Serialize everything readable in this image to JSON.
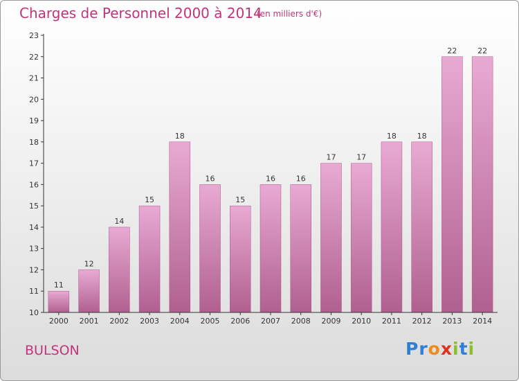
{
  "header": {
    "title": "Charges de Personnel 2000 à 2014",
    "subtitle": "(en milliers d'€)"
  },
  "footer": {
    "town": "BULSON",
    "logo": "Proxiti"
  },
  "colors": {
    "title": "#c0347a",
    "bar_top": "#e8aad3",
    "bar_bottom": "#b0608f"
  },
  "chart_data": {
    "type": "bar",
    "title": "Charges de Personnel 2000 à 2014",
    "subtitle": "(en milliers d'€)",
    "categories": [
      "2000",
      "2001",
      "2002",
      "2003",
      "2004",
      "2005",
      "2006",
      "2007",
      "2008",
      "2009",
      "2010",
      "2011",
      "2012",
      "2013",
      "2014"
    ],
    "values": [
      11,
      12,
      14,
      15,
      18,
      16,
      15,
      16,
      16,
      17,
      17,
      18,
      18,
      22,
      22
    ],
    "ylim": [
      10,
      23
    ],
    "yticks": [
      10,
      11,
      12,
      13,
      14,
      15,
      16,
      17,
      18,
      19,
      20,
      21,
      22,
      23
    ],
    "grid": false,
    "legend": "none"
  }
}
